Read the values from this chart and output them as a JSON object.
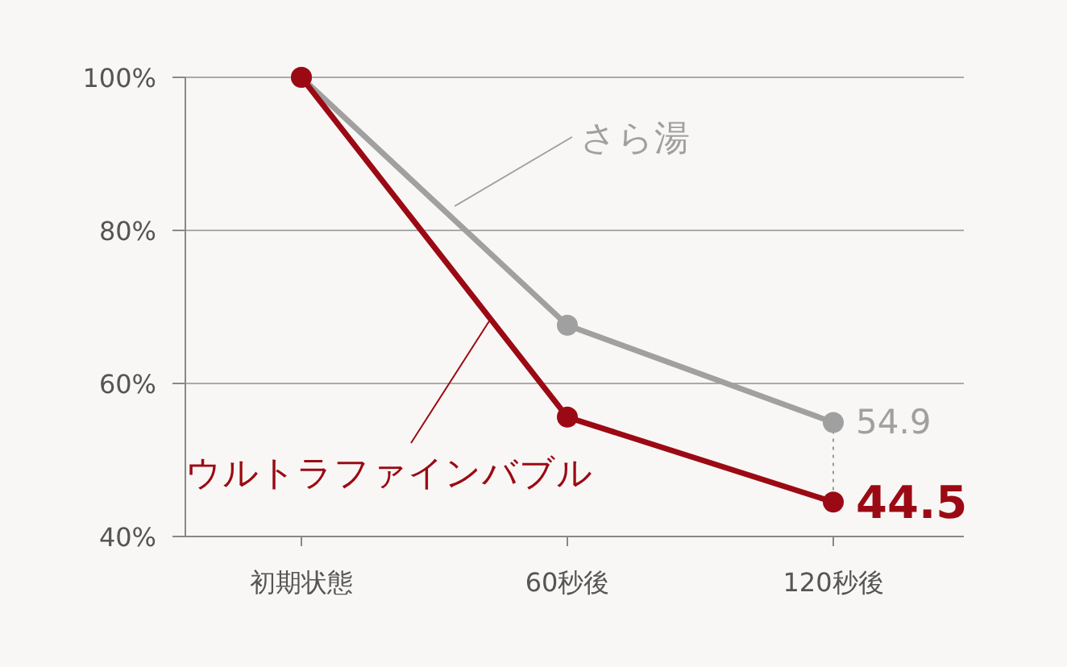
{
  "chart_data": {
    "type": "line",
    "categories": [
      "初期状態",
      "60秒後",
      "120秒後"
    ],
    "series": [
      {
        "name": "さら湯",
        "color": "#a0a0a0",
        "values": [
          100,
          67.6,
          54.9
        ],
        "value_labels": [
          null,
          null,
          "54.9"
        ]
      },
      {
        "name": "ウルトラファインバブル",
        "color": "#9b0a14",
        "values": [
          100,
          55.6,
          44.5
        ],
        "value_labels": [
          null,
          null,
          "44.5"
        ]
      }
    ],
    "ylim": [
      40,
      100
    ],
    "yticks": [
      {
        "value": 40,
        "label": "40%"
      },
      {
        "value": 60,
        "label": "60%"
      },
      {
        "value": 80,
        "label": "80%"
      },
      {
        "value": 100,
        "label": "100%"
      }
    ],
    "grid": "y",
    "marker": "circle",
    "line_style": "solid"
  }
}
